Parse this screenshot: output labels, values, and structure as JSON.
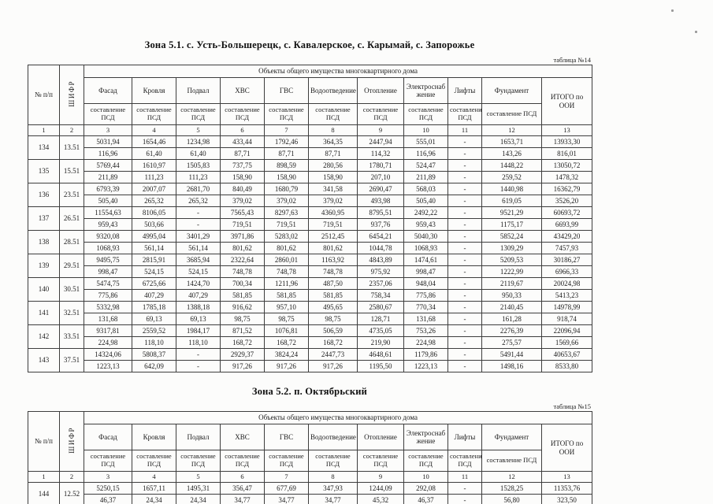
{
  "tables": [
    {
      "title": "Зона 5.1. с. Усть-Большерецк, с. Кавалерское, с. Карымай, с. Запорожье",
      "label": "таблица №14",
      "header": {
        "num": "№ п/п",
        "cipher": "ШИФР",
        "group": "Объекты общего имущества многоквартирного дома",
        "columns": [
          "Фасад",
          "Кровля",
          "Подвал",
          "ХВС",
          "ГВС",
          "Водоотведение",
          "Отопление",
          "Электроснабжение",
          "Лифты",
          "Фундамент"
        ],
        "sub_label": "составление ПСД",
        "total": "ИТОГО по ООИ",
        "index_row": [
          "1",
          "2",
          "3",
          "4",
          "5",
          "6",
          "7",
          "8",
          "9",
          "10",
          "11",
          "12",
          "13"
        ]
      },
      "rows": [
        {
          "num": "134",
          "cipher": "13.51",
          "line1": [
            "5031,94",
            "1654,46",
            "1234,98",
            "433,44",
            "1792,46",
            "364,35",
            "2447,94",
            "555,01",
            "-",
            "1653,71",
            "13933,30"
          ],
          "line2": [
            "116,96",
            "61,40",
            "61,40",
            "87,71",
            "87,71",
            "87,71",
            "114,32",
            "116,96",
            "-",
            "143,26",
            "816,01"
          ]
        },
        {
          "num": "135",
          "cipher": "15.51",
          "line1": [
            "5769,44",
            "1610,97",
            "1505,83",
            "737,75",
            "898,59",
            "280,56",
            "1780,71",
            "524,47",
            "-",
            "1448,22",
            "13050,72"
          ],
          "line2": [
            "211,89",
            "111,23",
            "111,23",
            "158,90",
            "158,90",
            "158,90",
            "207,10",
            "211,89",
            "-",
            "259,52",
            "1478,32"
          ]
        },
        {
          "num": "136",
          "cipher": "23.51",
          "line1": [
            "6793,39",
            "2007,07",
            "2681,70",
            "840,49",
            "1680,79",
            "341,58",
            "2690,47",
            "568,03",
            "-",
            "1440,98",
            "16362,79"
          ],
          "line2": [
            "505,40",
            "265,32",
            "265,32",
            "379,02",
            "379,02",
            "379,02",
            "493,98",
            "505,40",
            "-",
            "619,05",
            "3526,20"
          ]
        },
        {
          "num": "137",
          "cipher": "26.51",
          "line1": [
            "11554,63",
            "8106,05",
            "-",
            "7565,43",
            "8297,63",
            "4360,95",
            "8795,51",
            "2492,22",
            "-",
            "9521,29",
            "60693,72"
          ],
          "line2": [
            "959,43",
            "503,66",
            "-",
            "719,51",
            "719,51",
            "719,51",
            "937,76",
            "959,43",
            "-",
            "1175,17",
            "6693,99"
          ]
        },
        {
          "num": "138",
          "cipher": "28.51",
          "line1": [
            "9320,08",
            "4995,04",
            "3401,29",
            "3971,86",
            "5283,02",
            "2512,45",
            "6454,21",
            "5040,30",
            "-",
            "5852,24",
            "43429,20"
          ],
          "line2": [
            "1068,93",
            "561,14",
            "561,14",
            "801,62",
            "801,62",
            "801,62",
            "1044,78",
            "1068,93",
            "-",
            "1309,29",
            "7457,93"
          ]
        },
        {
          "num": "139",
          "cipher": "29.51",
          "line1": [
            "9495,75",
            "2815,91",
            "3685,94",
            "2322,64",
            "2860,01",
            "1163,92",
            "4843,89",
            "1474,61",
            "-",
            "5209,53",
            "30186,27"
          ],
          "line2": [
            "998,47",
            "524,15",
            "524,15",
            "748,78",
            "748,78",
            "748,78",
            "975,92",
            "998,47",
            "-",
            "1222,99",
            "6966,33"
          ]
        },
        {
          "num": "140",
          "cipher": "30.51",
          "line1": [
            "5474,75",
            "6725,66",
            "1424,70",
            "700,34",
            "1211,96",
            "487,50",
            "2357,06",
            "948,04",
            "-",
            "2119,67",
            "20024,98"
          ],
          "line2": [
            "775,86",
            "407,29",
            "407,29",
            "581,85",
            "581,85",
            "581,85",
            "758,34",
            "775,86",
            "-",
            "950,33",
            "5413,23"
          ]
        },
        {
          "num": "141",
          "cipher": "32.51",
          "line1": [
            "5332,98",
            "1785,18",
            "1388,18",
            "916,62",
            "957,10",
            "495,65",
            "2580,67",
            "770,34",
            "-",
            "2140,45",
            "14978,99"
          ],
          "line2": [
            "131,68",
            "69,13",
            "69,13",
            "98,75",
            "98,75",
            "98,75",
            "128,71",
            "131,68",
            "-",
            "161,28",
            "918,74"
          ]
        },
        {
          "num": "142",
          "cipher": "33.51",
          "line1": [
            "9317,81",
            "2559,52",
            "1984,17",
            "871,52",
            "1076,81",
            "506,59",
            "4735,05",
            "753,26",
            "-",
            "2276,39",
            "22096,94"
          ],
          "line2": [
            "224,98",
            "118,10",
            "118,10",
            "168,72",
            "168,72",
            "168,72",
            "219,90",
            "224,98",
            "-",
            "275,57",
            "1569,66"
          ]
        },
        {
          "num": "143",
          "cipher": "37.51",
          "line1": [
            "14324,06",
            "5808,37",
            "-",
            "2929,37",
            "3824,24",
            "2447,73",
            "4648,61",
            "1179,86",
            "-",
            "5491,44",
            "40653,67"
          ],
          "line2": [
            "1223,13",
            "642,09",
            "-",
            "917,26",
            "917,26",
            "917,26",
            "1195,50",
            "1223,13",
            "-",
            "1498,16",
            "8533,80"
          ]
        }
      ]
    },
    {
      "title": "Зона 5.2. п. Октябрьский",
      "label": "таблица №15",
      "header": {
        "num": "№ п/п",
        "cipher": "ШИФР",
        "group": "Объекты общего имущества многоквартирного дома",
        "columns": [
          "Фасад",
          "Кровля",
          "Подвал",
          "ХВС",
          "ГВС",
          "Водоотведение",
          "Отопление",
          "Электроснабжение",
          "Лифты",
          "Фундамент"
        ],
        "sub_label": "составление ПСД",
        "total": "ИТОГО по ООИ",
        "index_row": [
          "1",
          "2",
          "3",
          "4",
          "5",
          "6",
          "7",
          "8",
          "9",
          "10",
          "11",
          "12",
          "13"
        ]
      },
      "rows": [
        {
          "num": "144",
          "cipher": "12.52",
          "line1": [
            "5250,15",
            "1657,11",
            "1495,31",
            "356,47",
            "677,69",
            "347,93",
            "1244,09",
            "292,08",
            "-",
            "1528,25",
            "11353,76"
          ],
          "line2": [
            "46,37",
            "24,34",
            "24,34",
            "34,77",
            "34,77",
            "34,77",
            "45,32",
            "46,37",
            "-",
            "56,80",
            "323,50"
          ]
        }
      ]
    }
  ]
}
